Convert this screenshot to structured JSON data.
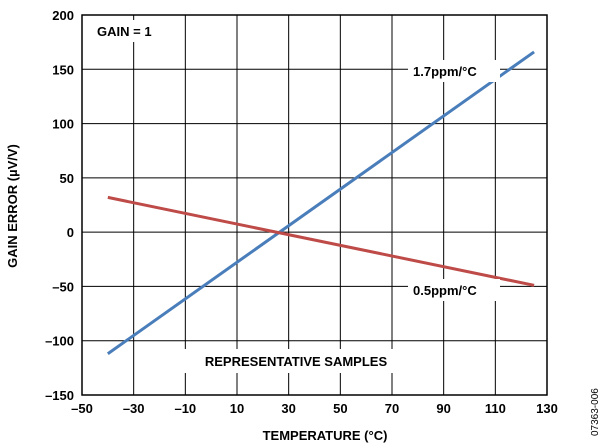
{
  "chart_data": {
    "type": "line",
    "xlabel": "TEMPERATURE (°C)",
    "ylabel": "GAIN ERROR (µV/V)",
    "xlim": [
      -50,
      130
    ],
    "ylim": [
      -150,
      200
    ],
    "x_ticks": [
      "–50",
      "–30",
      "–10",
      "10",
      "30",
      "50",
      "70",
      "90",
      "110",
      "130"
    ],
    "y_ticks": [
      "200",
      "150",
      "100",
      "50",
      "0",
      "–50",
      "–100",
      "–150"
    ],
    "grid": true,
    "series": [
      {
        "name": "1.7ppm/°C",
        "color": "#4a7ebb",
        "x": [
          -40,
          125
        ],
        "y": [
          -112,
          166
        ]
      },
      {
        "name": "0.5ppm/°C",
        "color": "#be4b48",
        "x": [
          -40,
          125
        ],
        "y": [
          32,
          -49
        ]
      }
    ],
    "annotations": {
      "gain": "GAIN = 1",
      "samples": "REPRESENTATIVE SAMPLES"
    },
    "figure_code": "07363-006"
  }
}
